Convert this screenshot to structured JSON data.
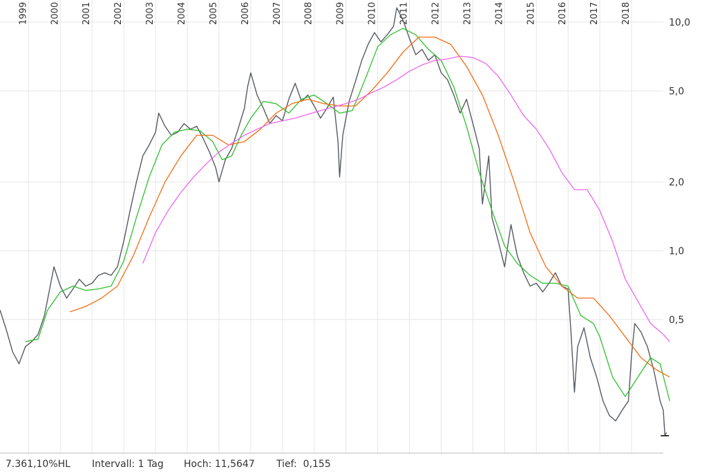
{
  "chart_data": {
    "type": "line",
    "title": "",
    "xlabel": "",
    "ylabel": "",
    "x_range": [
      1998.1,
      2019.0
    ],
    "y_scale": "log",
    "y_range": [
      0.13,
      12.5
    ],
    "grid": true,
    "years": [
      "1999",
      "2000",
      "2001",
      "2002",
      "2003",
      "2004",
      "2005",
      "2006",
      "2007",
      "2008",
      "2009",
      "2010",
      "2011",
      "2012",
      "2013",
      "2014",
      "2015",
      "2016",
      "2017",
      "2018"
    ],
    "yticks": [
      {
        "value": 10.0,
        "label": "10,0"
      },
      {
        "value": 5.0,
        "label": "5,0"
      },
      {
        "value": 2.0,
        "label": "2,0"
      },
      {
        "value": 1.0,
        "label": "1,0"
      },
      {
        "value": 0.5,
        "label": "0,5"
      }
    ],
    "series": [
      {
        "key": "price",
        "color": "#555a60",
        "points": [
          [
            1998.1,
            0.55
          ],
          [
            1998.3,
            0.45
          ],
          [
            1998.5,
            0.36
          ],
          [
            1998.7,
            0.32
          ],
          [
            1998.9,
            0.38
          ],
          [
            1999.1,
            0.4
          ],
          [
            1999.3,
            0.43
          ],
          [
            1999.5,
            0.52
          ],
          [
            1999.7,
            0.72
          ],
          [
            1999.8,
            0.85
          ],
          [
            2000.0,
            0.7
          ],
          [
            2000.2,
            0.62
          ],
          [
            2000.4,
            0.68
          ],
          [
            2000.6,
            0.75
          ],
          [
            2000.8,
            0.7
          ],
          [
            2001.0,
            0.72
          ],
          [
            2001.2,
            0.78
          ],
          [
            2001.4,
            0.8
          ],
          [
            2001.6,
            0.78
          ],
          [
            2001.8,
            0.85
          ],
          [
            2002.0,
            1.1
          ],
          [
            2002.2,
            1.5
          ],
          [
            2002.4,
            2.0
          ],
          [
            2002.6,
            2.6
          ],
          [
            2002.8,
            2.9
          ],
          [
            2003.0,
            3.3
          ],
          [
            2003.1,
            4.0
          ],
          [
            2003.3,
            3.5
          ],
          [
            2003.5,
            3.2
          ],
          [
            2003.7,
            3.3
          ],
          [
            2003.9,
            3.6
          ],
          [
            2004.1,
            3.4
          ],
          [
            2004.3,
            3.5
          ],
          [
            2004.5,
            3.1
          ],
          [
            2004.7,
            2.7
          ],
          [
            2004.9,
            2.3
          ],
          [
            2005.0,
            2.0
          ],
          [
            2005.2,
            2.5
          ],
          [
            2005.4,
            2.8
          ],
          [
            2005.6,
            3.4
          ],
          [
            2005.8,
            4.2
          ],
          [
            2005.9,
            5.2
          ],
          [
            2006.0,
            6.0
          ],
          [
            2006.2,
            4.8
          ],
          [
            2006.4,
            4.2
          ],
          [
            2006.6,
            3.6
          ],
          [
            2006.8,
            3.9
          ],
          [
            2007.0,
            3.7
          ],
          [
            2007.2,
            4.6
          ],
          [
            2007.4,
            5.4
          ],
          [
            2007.6,
            4.5
          ],
          [
            2007.8,
            4.8
          ],
          [
            2008.0,
            4.3
          ],
          [
            2008.2,
            3.8
          ],
          [
            2008.4,
            4.2
          ],
          [
            2008.6,
            4.7
          ],
          [
            2008.75,
            3.0
          ],
          [
            2008.8,
            2.1
          ],
          [
            2008.9,
            3.2
          ],
          [
            2009.1,
            4.5
          ],
          [
            2009.3,
            5.5
          ],
          [
            2009.5,
            6.8
          ],
          [
            2009.7,
            8.0
          ],
          [
            2009.9,
            9.0
          ],
          [
            2010.1,
            8.2
          ],
          [
            2010.3,
            8.8
          ],
          [
            2010.5,
            9.6
          ],
          [
            2010.6,
            11.56
          ],
          [
            2010.8,
            10.2
          ],
          [
            2011.0,
            8.5
          ],
          [
            2011.2,
            7.2
          ],
          [
            2011.4,
            7.6
          ],
          [
            2011.6,
            6.8
          ],
          [
            2011.8,
            7.2
          ],
          [
            2012.0,
            6.0
          ],
          [
            2012.2,
            5.6
          ],
          [
            2012.4,
            4.8
          ],
          [
            2012.6,
            4.0
          ],
          [
            2012.8,
            4.6
          ],
          [
            2013.0,
            3.6
          ],
          [
            2013.2,
            2.8
          ],
          [
            2013.3,
            1.6
          ],
          [
            2013.5,
            2.6
          ],
          [
            2013.6,
            1.4
          ],
          [
            2013.8,
            1.1
          ],
          [
            2014.0,
            0.85
          ],
          [
            2014.2,
            1.3
          ],
          [
            2014.4,
            0.95
          ],
          [
            2014.6,
            0.8
          ],
          [
            2014.8,
            0.7
          ],
          [
            2015.0,
            0.72
          ],
          [
            2015.2,
            0.66
          ],
          [
            2015.4,
            0.72
          ],
          [
            2015.6,
            0.8
          ],
          [
            2015.8,
            0.7
          ],
          [
            2016.0,
            0.68
          ],
          [
            2016.1,
            0.42
          ],
          [
            2016.2,
            0.24
          ],
          [
            2016.3,
            0.38
          ],
          [
            2016.5,
            0.46
          ],
          [
            2016.7,
            0.34
          ],
          [
            2016.9,
            0.28
          ],
          [
            2017.1,
            0.22
          ],
          [
            2017.3,
            0.19
          ],
          [
            2017.5,
            0.18
          ],
          [
            2017.7,
            0.2
          ],
          [
            2017.9,
            0.22
          ],
          [
            2018.0,
            0.35
          ],
          [
            2018.1,
            0.48
          ],
          [
            2018.3,
            0.44
          ],
          [
            2018.5,
            0.38
          ],
          [
            2018.7,
            0.3
          ],
          [
            2018.9,
            0.22
          ],
          [
            2019.0,
            0.2
          ],
          [
            2019.05,
            0.155
          ],
          [
            2019.1,
            0.16
          ]
        ]
      },
      {
        "key": "ma-short",
        "color": "#2ec02e",
        "points": [
          [
            1998.9,
            0.4
          ],
          [
            1999.3,
            0.41
          ],
          [
            1999.6,
            0.55
          ],
          [
            2000.0,
            0.66
          ],
          [
            2000.4,
            0.7
          ],
          [
            2000.8,
            0.67
          ],
          [
            2001.2,
            0.68
          ],
          [
            2001.6,
            0.7
          ],
          [
            2002.0,
            0.9
          ],
          [
            2002.4,
            1.4
          ],
          [
            2002.8,
            2.1
          ],
          [
            2003.2,
            2.9
          ],
          [
            2003.6,
            3.3
          ],
          [
            2004.0,
            3.4
          ],
          [
            2004.4,
            3.35
          ],
          [
            2004.8,
            3.0
          ],
          [
            2005.1,
            2.5
          ],
          [
            2005.4,
            2.6
          ],
          [
            2005.7,
            3.2
          ],
          [
            2006.0,
            3.8
          ],
          [
            2006.4,
            4.5
          ],
          [
            2006.8,
            4.4
          ],
          [
            2007.2,
            4.0
          ],
          [
            2007.6,
            4.6
          ],
          [
            2008.0,
            4.8
          ],
          [
            2008.4,
            4.4
          ],
          [
            2008.8,
            4.0
          ],
          [
            2009.2,
            4.1
          ],
          [
            2009.6,
            5.6
          ],
          [
            2010.0,
            7.8
          ],
          [
            2010.4,
            8.8
          ],
          [
            2010.8,
            9.4
          ],
          [
            2011.2,
            8.8
          ],
          [
            2011.6,
            7.6
          ],
          [
            2012.0,
            6.8
          ],
          [
            2012.4,
            5.2
          ],
          [
            2012.8,
            3.5
          ],
          [
            2013.2,
            2.2
          ],
          [
            2013.6,
            1.5
          ],
          [
            2014.0,
            1.05
          ],
          [
            2014.4,
            0.88
          ],
          [
            2014.8,
            0.78
          ],
          [
            2015.2,
            0.72
          ],
          [
            2015.6,
            0.72
          ],
          [
            2016.0,
            0.7
          ],
          [
            2016.4,
            0.52
          ],
          [
            2016.8,
            0.48
          ],
          [
            2017.0,
            0.42
          ],
          [
            2017.4,
            0.28
          ],
          [
            2017.8,
            0.23
          ],
          [
            2018.2,
            0.28
          ],
          [
            2018.6,
            0.34
          ],
          [
            2018.9,
            0.32
          ],
          [
            2019.2,
            0.22
          ]
        ]
      },
      {
        "key": "ma-mid",
        "color": "#f26d12",
        "points": [
          [
            2000.3,
            0.54
          ],
          [
            2000.8,
            0.57
          ],
          [
            2001.3,
            0.62
          ],
          [
            2001.8,
            0.7
          ],
          [
            2002.3,
            0.95
          ],
          [
            2002.8,
            1.4
          ],
          [
            2003.3,
            2.0
          ],
          [
            2003.8,
            2.6
          ],
          [
            2004.3,
            3.2
          ],
          [
            2004.8,
            3.2
          ],
          [
            2005.3,
            2.9
          ],
          [
            2005.8,
            3.0
          ],
          [
            2006.3,
            3.4
          ],
          [
            2006.8,
            4.0
          ],
          [
            2007.3,
            4.4
          ],
          [
            2007.8,
            4.6
          ],
          [
            2008.3,
            4.4
          ],
          [
            2008.8,
            4.3
          ],
          [
            2009.3,
            4.3
          ],
          [
            2009.8,
            5.0
          ],
          [
            2010.3,
            6.0
          ],
          [
            2010.8,
            7.4
          ],
          [
            2011.3,
            8.6
          ],
          [
            2011.8,
            8.6
          ],
          [
            2012.3,
            8.0
          ],
          [
            2012.8,
            6.4
          ],
          [
            2013.3,
            4.8
          ],
          [
            2013.8,
            3.2
          ],
          [
            2014.3,
            2.0
          ],
          [
            2014.8,
            1.2
          ],
          [
            2015.3,
            0.85
          ],
          [
            2015.8,
            0.7
          ],
          [
            2016.3,
            0.62
          ],
          [
            2016.8,
            0.62
          ],
          [
            2017.3,
            0.52
          ],
          [
            2017.8,
            0.42
          ],
          [
            2018.3,
            0.34
          ],
          [
            2018.8,
            0.3
          ],
          [
            2019.2,
            0.28
          ]
        ]
      },
      {
        "key": "ma-long",
        "color": "#ee66ee",
        "points": [
          [
            2002.6,
            0.88
          ],
          [
            2003.0,
            1.2
          ],
          [
            2003.4,
            1.5
          ],
          [
            2003.8,
            1.8
          ],
          [
            2004.2,
            2.1
          ],
          [
            2004.6,
            2.4
          ],
          [
            2005.0,
            2.7
          ],
          [
            2005.4,
            2.95
          ],
          [
            2005.8,
            3.2
          ],
          [
            2006.2,
            3.4
          ],
          [
            2006.6,
            3.6
          ],
          [
            2007.0,
            3.7
          ],
          [
            2007.4,
            3.8
          ],
          [
            2007.8,
            3.95
          ],
          [
            2008.2,
            4.1
          ],
          [
            2008.6,
            4.25
          ],
          [
            2009.0,
            4.4
          ],
          [
            2009.4,
            4.6
          ],
          [
            2009.8,
            4.9
          ],
          [
            2010.2,
            5.2
          ],
          [
            2010.6,
            5.6
          ],
          [
            2011.0,
            6.1
          ],
          [
            2011.4,
            6.5
          ],
          [
            2011.8,
            6.8
          ],
          [
            2012.2,
            6.9
          ],
          [
            2012.6,
            7.1
          ],
          [
            2013.0,
            7.0
          ],
          [
            2013.4,
            6.6
          ],
          [
            2013.8,
            5.8
          ],
          [
            2014.2,
            4.8
          ],
          [
            2014.6,
            3.9
          ],
          [
            2015.0,
            3.4
          ],
          [
            2015.4,
            2.8
          ],
          [
            2015.8,
            2.2
          ],
          [
            2016.2,
            1.85
          ],
          [
            2016.6,
            1.85
          ],
          [
            2017.0,
            1.5
          ],
          [
            2017.4,
            1.1
          ],
          [
            2017.8,
            0.75
          ],
          [
            2018.2,
            0.6
          ],
          [
            2018.6,
            0.48
          ],
          [
            2019.0,
            0.43
          ],
          [
            2019.2,
            0.4
          ]
        ]
      }
    ],
    "markers": {
      "high": 11.5647,
      "low": 0.155
    }
  },
  "footer": {
    "ratio": "7.361,10%HL",
    "interval": "Intervall: 1 Tag",
    "high": "Hoch: 11,5647",
    "low": "Tief:  0,155"
  }
}
